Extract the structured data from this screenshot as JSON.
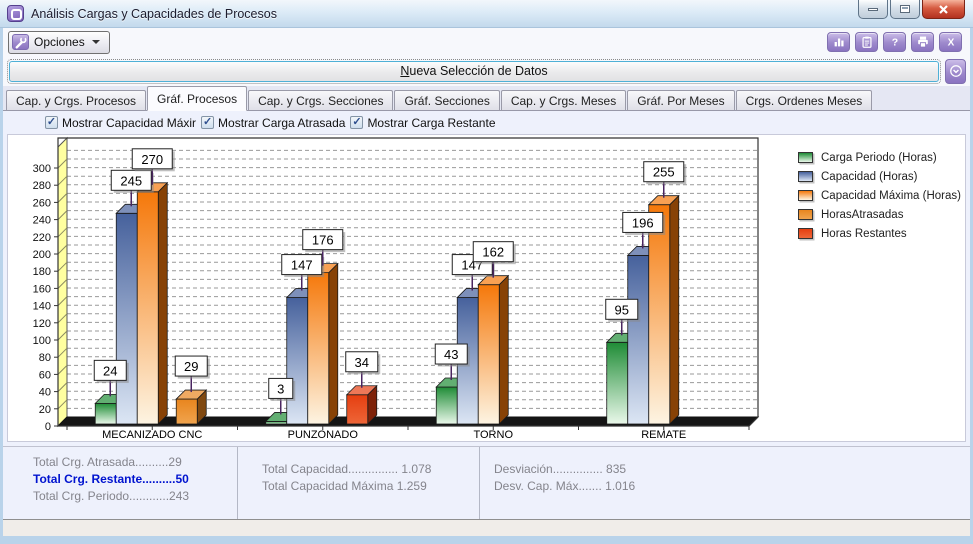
{
  "window": {
    "title": "Análisis Cargas y Capacidades de Procesos"
  },
  "toolbar": {
    "options_label": "Opciones",
    "icon_buttons": [
      "bar-chart",
      "clipboard",
      "help",
      "print",
      "close-x"
    ]
  },
  "action_bar": {
    "new_selection_initial": "N",
    "new_selection_rest": "ueva Selección de Datos"
  },
  "tabs": [
    {
      "label": "Cap. y Crgs. Procesos",
      "active": false
    },
    {
      "label": "Gráf. Procesos",
      "active": true
    },
    {
      "label": "Cap. y Crgs. Secciones",
      "active": false
    },
    {
      "label": "Gráf. Secciones",
      "active": false
    },
    {
      "label": "Cap. y Crgs. Meses",
      "active": false
    },
    {
      "label": "Gráf. Por Meses",
      "active": false
    },
    {
      "label": "Crgs. Ordenes Meses",
      "active": false
    }
  ],
  "checkboxes": [
    {
      "label": "Mostrar Capacidad Máxir",
      "checked": true
    },
    {
      "label": "Mostrar Carga Atrasada",
      "checked": true
    },
    {
      "label": "Mostrar Carga Restante",
      "checked": true
    }
  ],
  "chart_data": {
    "type": "bar",
    "categories": [
      "MECANIZADO CNC",
      "PUNZONADO",
      "TORNO",
      "REMATE"
    ],
    "series": [
      {
        "name": "Carga Periodo (Horas)",
        "values": [
          24,
          3,
          43,
          95
        ],
        "color_top": "#1f8c36",
        "color_bottom": "#eaf8ea",
        "cluster": true
      },
      {
        "name": "Capacidad (Horas)",
        "values": [
          245,
          147,
          147,
          196
        ],
        "color_top": "#46619c",
        "color_bottom": "#dce6f4",
        "cluster": true
      },
      {
        "name": "Capacidad Máxima (Horas)",
        "values": [
          270,
          176,
          162,
          255
        ],
        "color_top": "#f5780a",
        "color_bottom": "#fdf4e2",
        "cluster": true
      },
      {
        "name": "HorasAtrasadas",
        "values": [
          29,
          null,
          null,
          null
        ],
        "color_top": "#e8851e",
        "color_bottom": "#f0a44e",
        "cluster": false
      },
      {
        "name": "Horas Restantes",
        "values": [
          null,
          34,
          null,
          null
        ],
        "color_top": "#e53e10",
        "color_bottom": "#ee6638",
        "cluster": false
      }
    ],
    "ylim": [
      0,
      310
    ],
    "grid_step": 10,
    "ytick_step": 20,
    "grid": "dashed",
    "legend_position": "right",
    "wall_color": "#ffffa0"
  },
  "totals": {
    "col1": [
      {
        "text": "Total Crg. Atrasada..........29",
        "highlight": false
      },
      {
        "text": "Total Crg. Restante..........50",
        "highlight": true
      },
      {
        "text": "Total Crg. Periodo............243",
        "highlight": false
      }
    ],
    "col2": [
      {
        "text": "Total Capacidad............... 1.078",
        "highlight": false
      },
      {
        "text": "Total Capacidad Máxima 1.259",
        "highlight": false
      }
    ],
    "col3": [
      {
        "text": "Desviación............... 835",
        "highlight": false
      },
      {
        "text": "Desv. Cap. Máx....... 1.016",
        "highlight": false
      }
    ]
  },
  "colors": {
    "accent_purple": "#9d89cc",
    "close_red": "#b23220",
    "focus_teal": "#4fb0d6",
    "highlight_blue": "#0013cf"
  }
}
